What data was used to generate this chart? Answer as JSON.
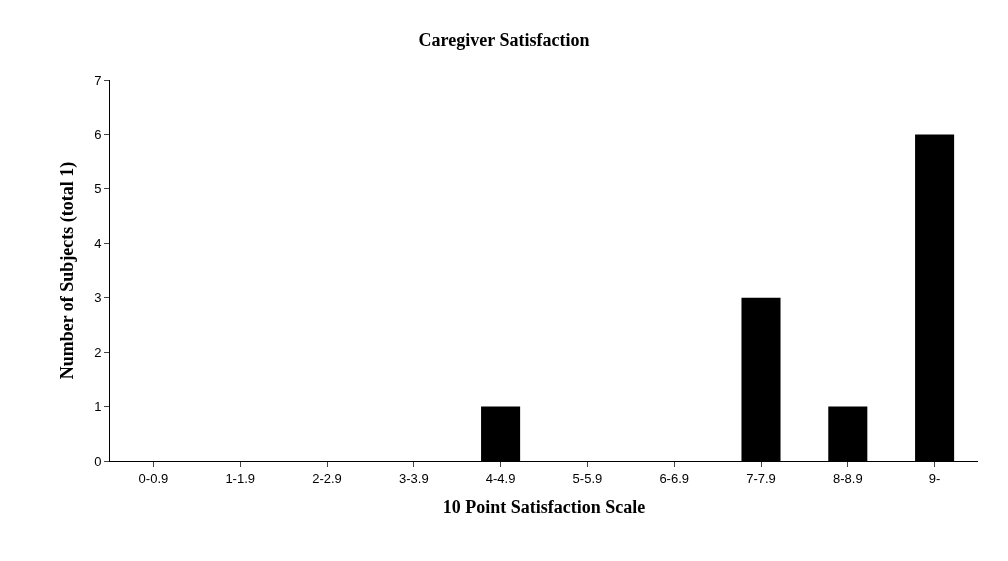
{
  "chart_data": {
    "type": "bar",
    "title": "Caregiver Satisfaction",
    "xlabel": "10 Point Satisfaction Scale",
    "ylabel": "Number of Subjects (total 1)",
    "categories": [
      "0-0.9",
      "1-1.9",
      "2-2.9",
      "3-3.9",
      "4-4.9",
      "5-5.9",
      "6-6.9",
      "7-7.9",
      "8-8.9",
      "9-"
    ],
    "values": [
      0,
      0,
      0,
      0,
      1,
      0,
      0,
      3,
      1,
      6
    ],
    "color": "#000000",
    "ylim": [
      0,
      7
    ],
    "yticks": [
      0,
      1,
      2,
      3,
      4,
      5,
      6,
      7
    ]
  }
}
